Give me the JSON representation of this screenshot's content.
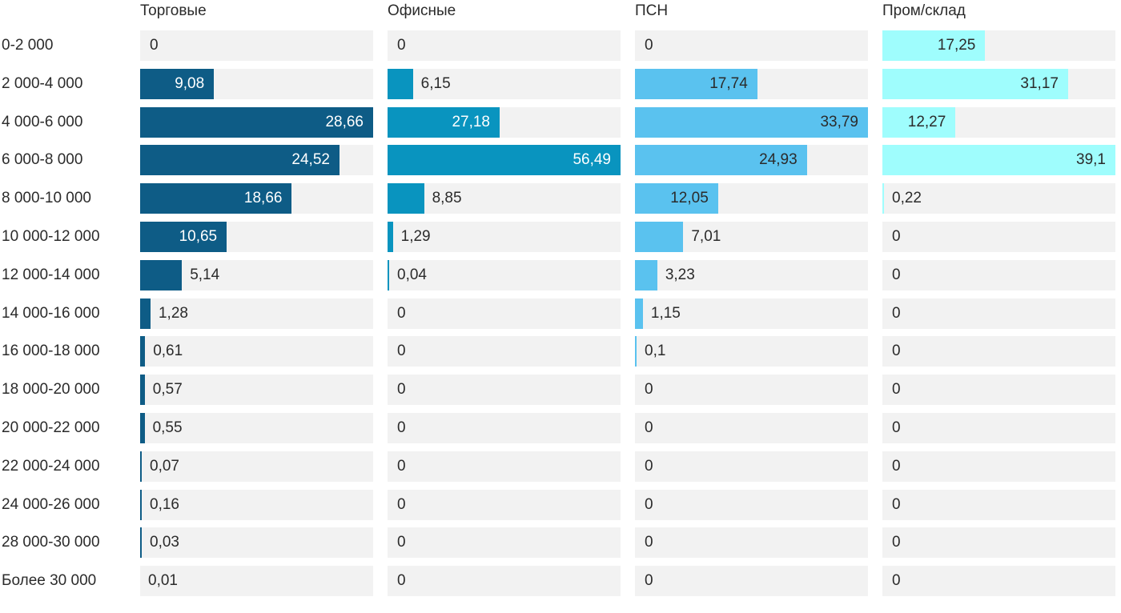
{
  "chart_data": {
    "type": "bar",
    "orientation": "horizontal",
    "title": "",
    "xlabel": "",
    "ylabel": "",
    "grid": false,
    "legend_position": "column headers on top",
    "value_format": "decimal comma (ru)",
    "scaling": "each series independently scaled to its own max value (bar track = series max)",
    "track_color": "#f2f2f2",
    "text_color": "#2b2b2b",
    "categories": [
      "0-2 000",
      "2 000-4 000",
      "4 000-6 000",
      "6 000-8 000",
      "8 000-10 000",
      "10 000-12 000",
      "12 000-14 000",
      "14 000-16 000",
      "16 000-18 000",
      "18 000-20 000",
      "20 000-22 000",
      "22 000-24 000",
      "24 000-26 000",
      "28 000-30 000",
      "Более 30 000"
    ],
    "series": [
      {
        "name": "Торговые",
        "color": "#0e5c86",
        "label_color_inside": "#ffffff",
        "max": 28.66,
        "values": [
          0,
          9.08,
          28.66,
          24.52,
          18.66,
          10.65,
          5.14,
          1.28,
          0.61,
          0.57,
          0.55,
          0.07,
          0.16,
          0.03,
          0.01
        ]
      },
      {
        "name": "Офисные",
        "color": "#0994bf",
        "label_color_inside": "#ffffff",
        "max": 56.49,
        "values": [
          0,
          6.15,
          27.18,
          56.49,
          8.85,
          1.29,
          0.04,
          0,
          0,
          0,
          0,
          0,
          0,
          0,
          0
        ]
      },
      {
        "name": "ПСН",
        "color": "#5ac2ef",
        "label_color_inside": "#2b2b2b",
        "max": 33.79,
        "values": [
          0,
          17.74,
          33.79,
          24.93,
          12.05,
          7.01,
          3.23,
          1.15,
          0.1,
          0,
          0,
          0,
          0,
          0,
          0
        ]
      },
      {
        "name": "Пром/склад",
        "color": "#9ffdfd",
        "label_color_inside": "#2b2b2b",
        "max": 39.1,
        "values": [
          17.25,
          31.17,
          12.27,
          39.1,
          0.22,
          0,
          0,
          0,
          0,
          0,
          0,
          0,
          0,
          0,
          0
        ]
      }
    ]
  }
}
